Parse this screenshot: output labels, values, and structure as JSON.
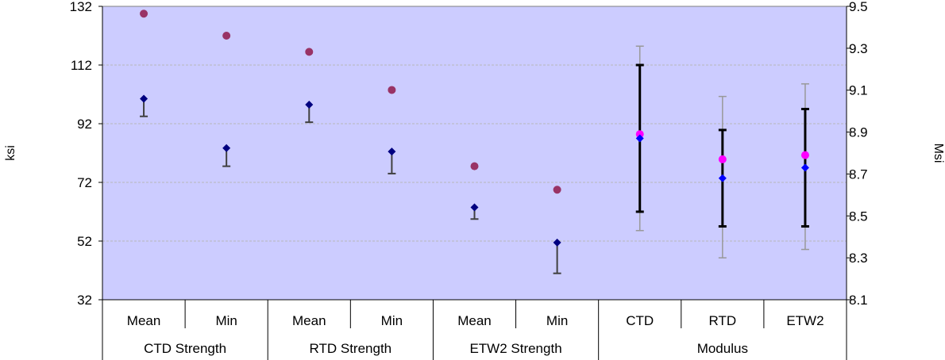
{
  "chart_data": {
    "type": "scatter",
    "title": "",
    "ylabel_left": "ksi",
    "ylabel_right": "Msi",
    "ylim_left": [
      32,
      132
    ],
    "yticks_left": [
      "32",
      "52",
      "72",
      "92",
      "112",
      "132"
    ],
    "ylim_right": [
      8.1,
      9.5
    ],
    "yticks_right": [
      "8.1",
      "8.3",
      "8.5",
      "8.7",
      "8.9",
      "9.1",
      "9.3",
      "9.5"
    ],
    "grid": true,
    "colors": {
      "plot_bg": "#ccccff",
      "diamond": "#000080",
      "circle": "#993366",
      "modulus_diamond": "#0000ff",
      "modulus_circle": "#ff00ff",
      "errorbar_dark": "#000000",
      "errorbar_light": "#999999",
      "gridline": "#b8b8b8"
    },
    "groups": [
      {
        "label": "CTD Strength",
        "categories": [
          "Mean",
          "Min"
        ]
      },
      {
        "label": "RTD Strength",
        "categories": [
          "Mean",
          "Min"
        ]
      },
      {
        "label": "ETW2 Strength",
        "categories": [
          "Mean",
          "Min"
        ]
      },
      {
        "label": "Modulus",
        "categories": [
          "CTD",
          "RTD",
          "ETW2"
        ]
      }
    ],
    "strength_points": [
      {
        "group": "CTD Strength",
        "category": "Mean",
        "diamond": 100.5,
        "error_low": 94.5,
        "circle": 129.5
      },
      {
        "group": "CTD Strength",
        "category": "Min",
        "diamond": 83.7,
        "error_low": 77.5,
        "circle": 122
      },
      {
        "group": "RTD Strength",
        "category": "Mean",
        "diamond": 98.5,
        "error_low": 92.5,
        "circle": 116.5
      },
      {
        "group": "RTD Strength",
        "category": "Min",
        "diamond": 82.5,
        "error_low": 75,
        "circle": 103.5
      },
      {
        "group": "ETW2 Strength",
        "category": "Mean",
        "diamond": 63.5,
        "error_low": 59.5,
        "circle": 77.5
      },
      {
        "group": "ETW2 Strength",
        "category": "Min",
        "diamond": 51.5,
        "error_low": 41,
        "circle": 69.5
      }
    ],
    "modulus_points": [
      {
        "category": "CTD",
        "diamond": 8.87,
        "circle": 8.89,
        "inner_range": [
          8.52,
          9.22
        ],
        "outer_range": [
          8.43,
          9.31
        ]
      },
      {
        "category": "RTD",
        "diamond": 8.68,
        "circle": 8.77,
        "inner_range": [
          8.45,
          8.91
        ],
        "outer_range": [
          8.3,
          9.07
        ]
      },
      {
        "category": "ETW2",
        "diamond": 8.73,
        "circle": 8.79,
        "inner_range": [
          8.45,
          9.01
        ],
        "outer_range": [
          8.34,
          9.13
        ]
      }
    ]
  }
}
